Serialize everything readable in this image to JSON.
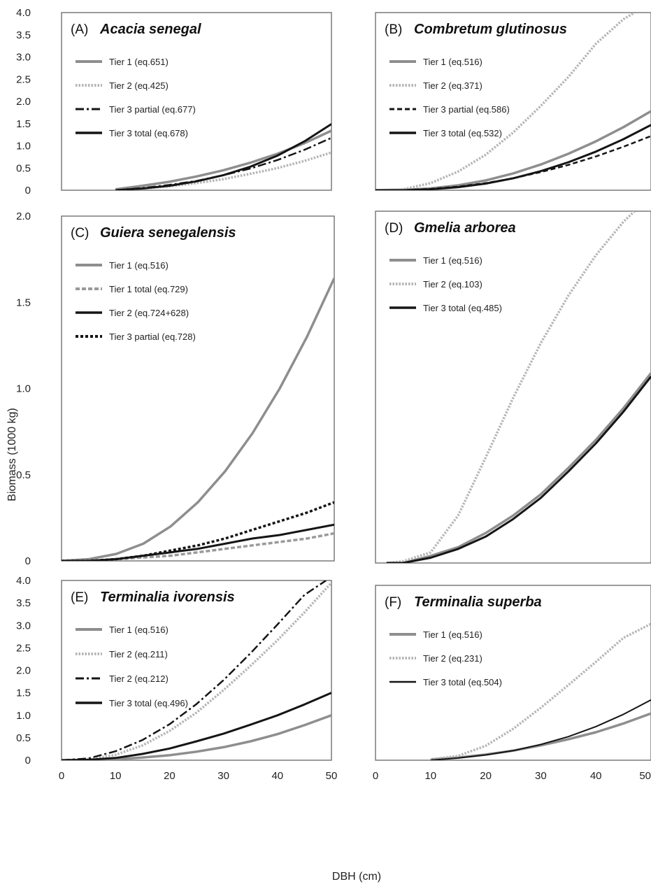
{
  "figure": {
    "ylabel": "Biomass (1000 kg)",
    "xlabel": "DBH (cm)"
  },
  "chart_data": [
    {
      "type": "line",
      "panel": "(A)",
      "title": "Acacia senegal",
      "xlim": [
        0,
        50
      ],
      "ylim": [
        0,
        4
      ],
      "yticks": [
        "0",
        "0.5",
        "1.0",
        "1.5",
        "2.0",
        "2.5",
        "3.0",
        "3.5",
        "4.0"
      ],
      "xticks": [],
      "series": [
        {
          "name": "Tier 1 (eq.651)",
          "style": "gray-solid",
          "x": [
            10,
            15,
            20,
            25,
            30,
            35,
            40,
            45,
            50
          ],
          "y": [
            0.02,
            0.1,
            0.19,
            0.31,
            0.45,
            0.62,
            0.82,
            1.06,
            1.34
          ]
        },
        {
          "name": "Tier 2 (eq.425)",
          "style": "gray-dotted",
          "x": [
            10,
            15,
            20,
            25,
            30,
            35,
            40,
            45,
            50
          ],
          "y": [
            0.0,
            0.04,
            0.09,
            0.16,
            0.25,
            0.37,
            0.5,
            0.66,
            0.85
          ]
        },
        {
          "name": "Tier 3 partial (eq.677)",
          "style": "black-dashdot",
          "x": [
            10,
            15,
            20,
            25,
            30,
            35,
            40,
            45,
            50
          ],
          "y": [
            0.0,
            0.05,
            0.12,
            0.21,
            0.34,
            0.49,
            0.68,
            0.91,
            1.18
          ]
        },
        {
          "name": "Tier 3 total (eq.678)",
          "style": "black-solid",
          "x": [
            10,
            15,
            20,
            25,
            30,
            35,
            40,
            45,
            50
          ],
          "y": [
            0.0,
            0.04,
            0.1,
            0.2,
            0.34,
            0.53,
            0.78,
            1.1,
            1.49
          ]
        }
      ]
    },
    {
      "type": "line",
      "panel": "(B)",
      "title": "Combretum glutinosus",
      "xlim": [
        0,
        50
      ],
      "ylim": [
        0,
        4
      ],
      "yticks": [],
      "xticks": [],
      "series": [
        {
          "name": "Tier 1 (eq.516)",
          "style": "gray-solid",
          "x": [
            0,
            5,
            10,
            15,
            20,
            25,
            30,
            35,
            40,
            45,
            50
          ],
          "y": [
            0.0,
            0.01,
            0.04,
            0.11,
            0.22,
            0.38,
            0.58,
            0.82,
            1.1,
            1.42,
            1.78
          ]
        },
        {
          "name": "Tier 2 (eq.371)",
          "style": "gray-dotted",
          "x": [
            0,
            5,
            10,
            15,
            20,
            25,
            30,
            35,
            40,
            45,
            47
          ],
          "y": [
            0.0,
            0.02,
            0.16,
            0.42,
            0.8,
            1.3,
            1.9,
            2.55,
            3.3,
            3.85,
            4.0
          ]
        },
        {
          "name": "Tier 3 partial (eq.586)",
          "style": "black-dashed",
          "x": [
            0,
            5,
            10,
            15,
            20,
            25,
            30,
            35,
            40,
            45,
            50
          ],
          "y": [
            0.0,
            0.0,
            0.03,
            0.08,
            0.16,
            0.27,
            0.41,
            0.57,
            0.76,
            0.98,
            1.22
          ]
        },
        {
          "name": "Tier 3 total (eq.532)",
          "style": "black-solid",
          "x": [
            0,
            5,
            10,
            15,
            20,
            25,
            30,
            35,
            40,
            45,
            50
          ],
          "y": [
            0.0,
            0.0,
            0.02,
            0.07,
            0.15,
            0.27,
            0.43,
            0.63,
            0.87,
            1.15,
            1.47
          ]
        }
      ]
    },
    {
      "type": "line",
      "panel": "(C)",
      "title": "Guiera senegalensis",
      "xlim": [
        0,
        50
      ],
      "ylim": [
        0,
        2
      ],
      "yticks": [
        "0",
        "0.5",
        "1.0",
        "1.5",
        "2.0"
      ],
      "xticks": [],
      "series": [
        {
          "name": "Tier 1 (eq.516)",
          "style": "gray-solid",
          "x": [
            0,
            5,
            10,
            15,
            20,
            25,
            30,
            35,
            40,
            45,
            50
          ],
          "y": [
            0.0,
            0.01,
            0.04,
            0.1,
            0.2,
            0.34,
            0.52,
            0.74,
            1.0,
            1.3,
            1.64
          ]
        },
        {
          "name": "Tier 1 total (eq.729)",
          "style": "gray-dashed",
          "x": [
            0,
            5,
            10,
            15,
            20,
            25,
            30,
            35,
            40,
            45,
            50
          ],
          "y": [
            0.0,
            0.0,
            0.01,
            0.02,
            0.03,
            0.05,
            0.07,
            0.09,
            0.11,
            0.13,
            0.16
          ]
        },
        {
          "name": "Tier 2 (eq.724+628)",
          "style": "black-solid",
          "x": [
            0,
            5,
            10,
            15,
            20,
            25,
            30,
            35,
            40,
            45,
            50
          ],
          "y": [
            0.0,
            0.0,
            0.01,
            0.03,
            0.05,
            0.07,
            0.1,
            0.13,
            0.15,
            0.18,
            0.21
          ]
        },
        {
          "name": "Tier 3 partial (eq.728)",
          "style": "black-dotted",
          "x": [
            0,
            5,
            10,
            15,
            20,
            25,
            30,
            35,
            40,
            45,
            50
          ],
          "y": [
            0.0,
            0.0,
            0.01,
            0.03,
            0.06,
            0.09,
            0.13,
            0.18,
            0.23,
            0.28,
            0.34
          ]
        }
      ]
    },
    {
      "type": "line",
      "panel": "(D)",
      "title": "Gmelia arborea",
      "xlim": [
        0,
        50
      ],
      "ylim": [
        0,
        2
      ],
      "yticks": [],
      "xticks": [],
      "series": [
        {
          "name": "Tier 1 (eq.516)",
          "style": "gray-solid",
          "x": [
            2,
            5,
            10,
            15,
            20,
            25,
            30,
            35,
            40,
            45,
            50
          ],
          "y": [
            0.0,
            0.0,
            0.04,
            0.09,
            0.17,
            0.27,
            0.39,
            0.54,
            0.7,
            0.88,
            1.08
          ]
        },
        {
          "name": "Tier 2 (eq.103)",
          "style": "gray-dotted",
          "x": [
            2,
            5,
            10,
            15,
            20,
            25,
            30,
            35,
            40,
            45,
            47
          ],
          "y": [
            0.0,
            0.01,
            0.06,
            0.27,
            0.6,
            0.94,
            1.25,
            1.52,
            1.75,
            1.94,
            2.0
          ]
        },
        {
          "name": "Tier 3 total (eq.485)",
          "style": "black-solid",
          "x": [
            2,
            5,
            10,
            15,
            20,
            25,
            30,
            35,
            40,
            45,
            50
          ],
          "y": [
            0.0,
            0.0,
            0.03,
            0.08,
            0.15,
            0.25,
            0.37,
            0.52,
            0.68,
            0.86,
            1.06
          ]
        }
      ]
    },
    {
      "type": "line",
      "panel": "(E)",
      "title": "Terminalia ivorensis",
      "xlim": [
        0,
        50
      ],
      "ylim": [
        0,
        4
      ],
      "yticks": [
        "0",
        "0.5",
        "1.0",
        "1.5",
        "2.0",
        "2.5",
        "3.0",
        "3.5",
        "4.0"
      ],
      "xticks": [
        "0",
        "10",
        "20",
        "30",
        "40",
        "50"
      ],
      "series": [
        {
          "name": "Tier 1 (eq.516)",
          "style": "gray-solid",
          "x": [
            0,
            5,
            10,
            15,
            20,
            25,
            30,
            35,
            40,
            45,
            50
          ],
          "y": [
            0.0,
            0.0,
            0.02,
            0.06,
            0.11,
            0.19,
            0.29,
            0.42,
            0.58,
            0.78,
            1.0
          ]
        },
        {
          "name": "Tier 2 (eq.211)",
          "style": "gray-dotted",
          "x": [
            0,
            5,
            10,
            15,
            20,
            25,
            30,
            35,
            40,
            45,
            50
          ],
          "y": [
            0.0,
            0.02,
            0.12,
            0.33,
            0.65,
            1.06,
            1.56,
            2.1,
            2.67,
            3.29,
            3.95
          ]
        },
        {
          "name": "Tier 2 (eq.212)",
          "style": "black-dashdot",
          "x": [
            0,
            5,
            10,
            15,
            20,
            25,
            30,
            35,
            40,
            45,
            49
          ],
          "y": [
            0.0,
            0.04,
            0.2,
            0.45,
            0.8,
            1.25,
            1.78,
            2.38,
            3.02,
            3.68,
            4.0
          ]
        },
        {
          "name": "Tier 3 total (eq.496)",
          "style": "black-solid",
          "x": [
            0,
            5,
            10,
            15,
            20,
            25,
            30,
            35,
            40,
            45,
            50
          ],
          "y": [
            0.0,
            0.01,
            0.05,
            0.14,
            0.26,
            0.42,
            0.59,
            0.79,
            1.0,
            1.24,
            1.5
          ]
        }
      ]
    },
    {
      "type": "line",
      "panel": "(F)",
      "title": "Terminalia superba",
      "xlim": [
        0,
        50
      ],
      "ylim": [
        0,
        4
      ],
      "yticks": [],
      "xticks": [
        "0",
        "10",
        "20",
        "30",
        "40",
        "50"
      ],
      "series": [
        {
          "name": "Tier 1 (eq.516)",
          "style": "gray-solid",
          "x": [
            10,
            15,
            20,
            25,
            30,
            35,
            40,
            45,
            50
          ],
          "y": [
            0.02,
            0.06,
            0.13,
            0.22,
            0.34,
            0.48,
            0.64,
            0.84,
            1.07
          ]
        },
        {
          "name": "Tier 2 (eq.231)",
          "style": "gray-dotted",
          "x": [
            10,
            15,
            20,
            25,
            30,
            35,
            40,
            45,
            50
          ],
          "y": [
            0.02,
            0.1,
            0.33,
            0.72,
            1.2,
            1.72,
            2.25,
            2.8,
            3.12
          ]
        },
        {
          "name": "Tier 3 total (eq.504)",
          "style": "black-thin",
          "x": [
            10,
            15,
            20,
            25,
            30,
            35,
            40,
            45,
            50
          ],
          "y": [
            0.0,
            0.05,
            0.12,
            0.22,
            0.36,
            0.54,
            0.77,
            1.05,
            1.38
          ]
        }
      ]
    }
  ]
}
